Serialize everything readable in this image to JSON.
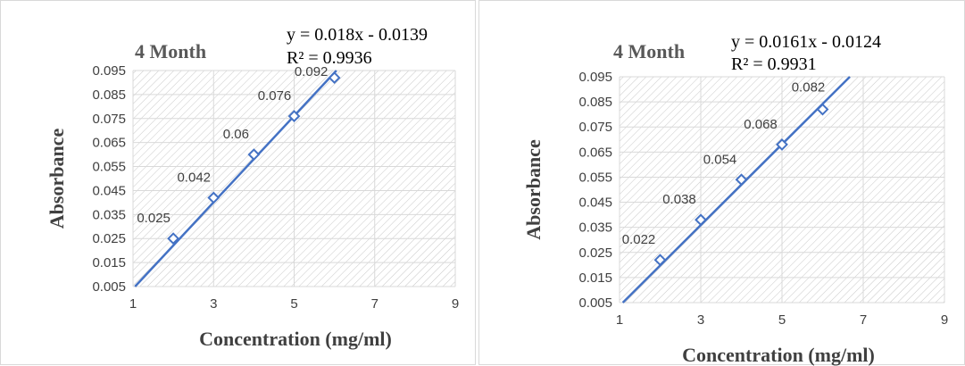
{
  "colors": {
    "series": "#4472c4",
    "grid": "#d9d9d9",
    "hatch": "#c8c8c8",
    "text": "#404040"
  },
  "chart_data": [
    {
      "type": "scatter",
      "title": "4 Month",
      "xlabel": "Concentration (mg/ml)",
      "ylabel": "Absorbance",
      "xlim": [
        1,
        9
      ],
      "ylim": [
        0.005,
        0.095
      ],
      "xticks": [
        "1",
        "3",
        "5",
        "7",
        "9"
      ],
      "yticks": [
        "0.095",
        "0.085",
        "0.075",
        "0.065",
        "0.055",
        "0.045",
        "0.035",
        "0.025",
        "0.015",
        "0.005"
      ],
      "x": [
        2,
        3,
        4,
        5,
        6
      ],
      "y": [
        0.025,
        0.042,
        0.06,
        0.076,
        0.092
      ],
      "data_labels": [
        "0.025",
        "0.042",
        "0.06",
        "0.076",
        "0.092"
      ],
      "trendline": {
        "slope": 0.018,
        "intercept": -0.0139,
        "equation": "y = 0.018x - 0.0139",
        "r2": "R² = 0.9936"
      }
    },
    {
      "type": "scatter",
      "title": "4 Month",
      "xlabel": "Concentration (mg/ml)",
      "ylabel": "Absorbance",
      "xlim": [
        1,
        9
      ],
      "ylim": [
        0.005,
        0.095
      ],
      "xticks": [
        "1",
        "3",
        "5",
        "7",
        "9"
      ],
      "yticks": [
        "0.095",
        "0.085",
        "0.075",
        "0.065",
        "0.055",
        "0.045",
        "0.035",
        "0.025",
        "0.015",
        "0.005"
      ],
      "x": [
        2,
        3,
        4,
        5,
        6
      ],
      "y": [
        0.022,
        0.038,
        0.054,
        0.068,
        0.082
      ],
      "data_labels": [
        "0.022",
        "0.038",
        "0.054",
        "0.068",
        "0.082"
      ],
      "trendline": {
        "slope": 0.0161,
        "intercept": -0.0124,
        "equation": "y = 0.0161x - 0.0124",
        "r2": "R² = 0.9931"
      }
    }
  ]
}
